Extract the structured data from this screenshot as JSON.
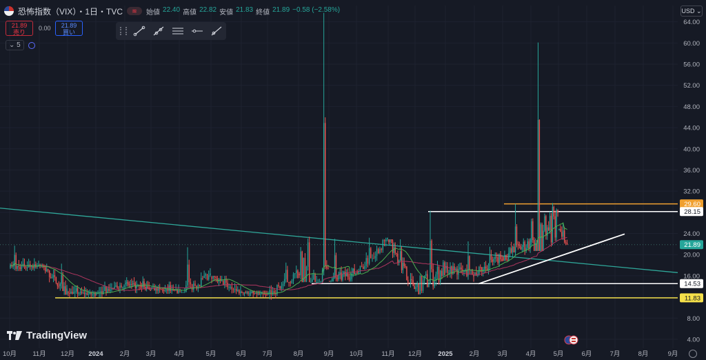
{
  "header": {
    "title": "恐怖指数（VIX）・1日・TVC",
    "ohlc": {
      "open_label": "始値",
      "open": "22.40",
      "high_label": "高値",
      "high": "22.82",
      "low_label": "安値",
      "low": "21.83",
      "close_label": "終値",
      "close": "21.89",
      "change": "−0.58 (−2.58%)"
    },
    "currency": "USD"
  },
  "trade": {
    "sell_price": "21.89",
    "sell_label": "売り",
    "buy_price": "21.89",
    "buy_label": "買い",
    "spread": "0.00"
  },
  "indicators": {
    "count": "5"
  },
  "toolbar": {
    "tools": [
      "trend-line-icon",
      "ray-icon",
      "parallel-channel-icon",
      "horizontal-ray-icon",
      "extended-line-icon"
    ]
  },
  "watermark": {
    "text": "TradingView"
  },
  "colors": {
    "background": "#161a25",
    "up": "#26a69a",
    "down": "#ef5350",
    "ma_fast": "#4caf50",
    "ma_slow": "#b0365f",
    "trendline": "#2fa89a",
    "orange_level": "#f0a030",
    "yellow_level": "#f5e04a",
    "white_level": "#ffffff"
  },
  "chart_data": {
    "type": "candlestick",
    "title": "恐怖指数（VIX）・1日・TVC",
    "ylim": [
      4,
      66
    ],
    "y_ticks": [
      "64.00",
      "60.00",
      "56.00",
      "52.00",
      "48.00",
      "44.00",
      "40.00",
      "36.00",
      "32.00",
      "28.00",
      "24.00",
      "20.00",
      "16.00",
      "12.00",
      "8.00",
      "4.00"
    ],
    "x_ticks": [
      "10月",
      "11月",
      "12月",
      "2024",
      "2月",
      "3月",
      "4月",
      "5月",
      "6月",
      "7月",
      "8月",
      "9月",
      "10月",
      "11月",
      "12月",
      "2025",
      "2月",
      "3月",
      "4月",
      "5月",
      "6月",
      "7月",
      "8月",
      "9月"
    ],
    "monthly_ohlc": [
      {
        "month": "2023-10",
        "open": 17.5,
        "high": 21.7,
        "low": 16.9,
        "close": 18.1
      },
      {
        "month": "2023-11",
        "open": 18.1,
        "high": 18.3,
        "low": 12.4,
        "close": 12.9
      },
      {
        "month": "2023-12",
        "open": 12.9,
        "high": 14.2,
        "low": 11.8,
        "close": 12.5
      },
      {
        "month": "2024-01",
        "open": 12.5,
        "high": 14.9,
        "low": 11.9,
        "close": 14.4
      },
      {
        "month": "2024-02",
        "open": 14.4,
        "high": 15.9,
        "low": 12.3,
        "close": 13.5
      },
      {
        "month": "2024-03",
        "open": 13.5,
        "high": 14.9,
        "low": 12.6,
        "close": 13.0
      },
      {
        "month": "2024-04",
        "open": 13.0,
        "high": 21.4,
        "low": 12.9,
        "close": 15.7
      },
      {
        "month": "2024-05",
        "open": 15.7,
        "high": 16.0,
        "low": 11.5,
        "close": 12.9
      },
      {
        "month": "2024-06",
        "open": 12.9,
        "high": 13.2,
        "low": 11.9,
        "close": 12.4
      },
      {
        "month": "2024-07",
        "open": 12.4,
        "high": 18.5,
        "low": 10.6,
        "close": 16.4
      },
      {
        "month": "2024-08",
        "open": 16.4,
        "high": 65.7,
        "low": 14.8,
        "close": 15.0
      },
      {
        "month": "2024-09",
        "open": 15.0,
        "high": 23.0,
        "low": 14.9,
        "close": 16.7
      },
      {
        "month": "2024-10",
        "open": 16.7,
        "high": 23.2,
        "low": 16.4,
        "close": 22.9
      },
      {
        "month": "2024-11",
        "open": 22.9,
        "high": 22.9,
        "low": 13.5,
        "close": 13.5
      },
      {
        "month": "2024-12",
        "open": 13.5,
        "high": 28.3,
        "low": 12.5,
        "close": 17.4
      },
      {
        "month": "2025-01",
        "open": 17.4,
        "high": 22.5,
        "low": 14.8,
        "close": 16.4
      },
      {
        "month": "2025-02",
        "open": 16.4,
        "high": 21.5,
        "low": 14.5,
        "close": 19.6
      },
      {
        "month": "2025-03",
        "open": 19.6,
        "high": 29.6,
        "low": 18.8,
        "close": 22.3
      },
      {
        "month": "2025-04",
        "open": 22.3,
        "high": 60.1,
        "low": 20.7,
        "close": 24.7
      },
      {
        "month": "2025-05",
        "open": 24.7,
        "high": 25.9,
        "low": 21.8,
        "close": 21.9
      }
    ],
    "series": [
      {
        "name": "MA fast",
        "type": "line"
      },
      {
        "name": "MA slow",
        "type": "line"
      }
    ],
    "price_lines": [
      {
        "label": "29.60",
        "value": 29.6,
        "color": "#f0a030"
      },
      {
        "label": "28.15",
        "value": 28.15,
        "color": "#ffffff"
      },
      {
        "label": "21.89",
        "value": 21.89,
        "color": "#26a69a"
      },
      {
        "label": "14.53",
        "value": 14.53,
        "color": "#ffffff"
      },
      {
        "label": "11.83",
        "value": 11.83,
        "color": "#f5e04a"
      }
    ],
    "trendlines": [
      {
        "name": "falling-trendline",
        "from": {
          "month": "2023-10",
          "value": 28.8
        },
        "to": {
          "month": "2025-09",
          "value": 16.6
        }
      },
      {
        "name": "rising-support-line",
        "from": {
          "month": "2025-02",
          "value": 14.5
        },
        "to": {
          "month": "2025-07",
          "value": 23.9
        }
      }
    ]
  }
}
